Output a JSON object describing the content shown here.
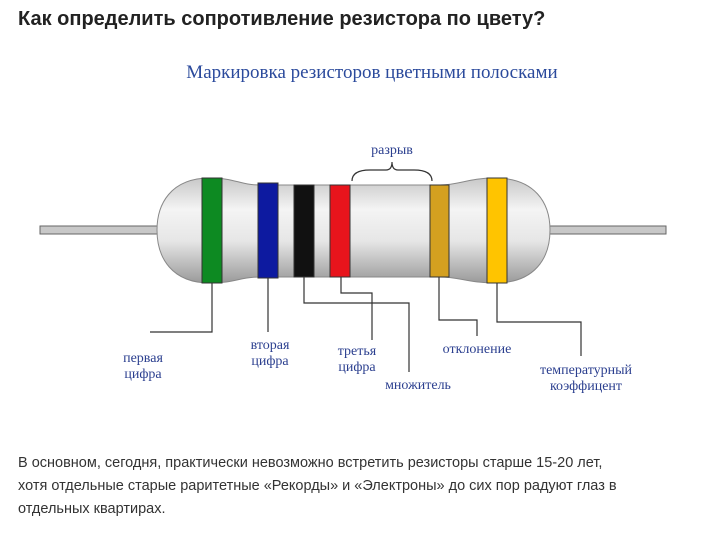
{
  "header": {
    "title": "Как определить сопротивление резистора по цвету?"
  },
  "diagram": {
    "title": "Маркировка резисторов цветными полосками",
    "gap_label": "разрыв",
    "labels": [
      {
        "lines": [
          "первая",
          "цифра"
        ]
      },
      {
        "lines": [
          "вторая",
          "цифра"
        ]
      },
      {
        "lines": [
          "третья",
          "цифра"
        ]
      },
      {
        "lines": [
          "множитель"
        ]
      },
      {
        "lines": [
          "отклонение"
        ]
      },
      {
        "lines": [
          "температурный",
          "коэффицент"
        ]
      }
    ]
  },
  "paragraph": {
    "lines": [
      "В основном, сегодня, практически невозможно встретить резисторы старше 15-20 лет,",
      "хотя отдельные старые раритетные «Рекорды» и «Электроны» до сих пор радуют глаз в",
      "отдельных квартирах."
    ]
  }
}
